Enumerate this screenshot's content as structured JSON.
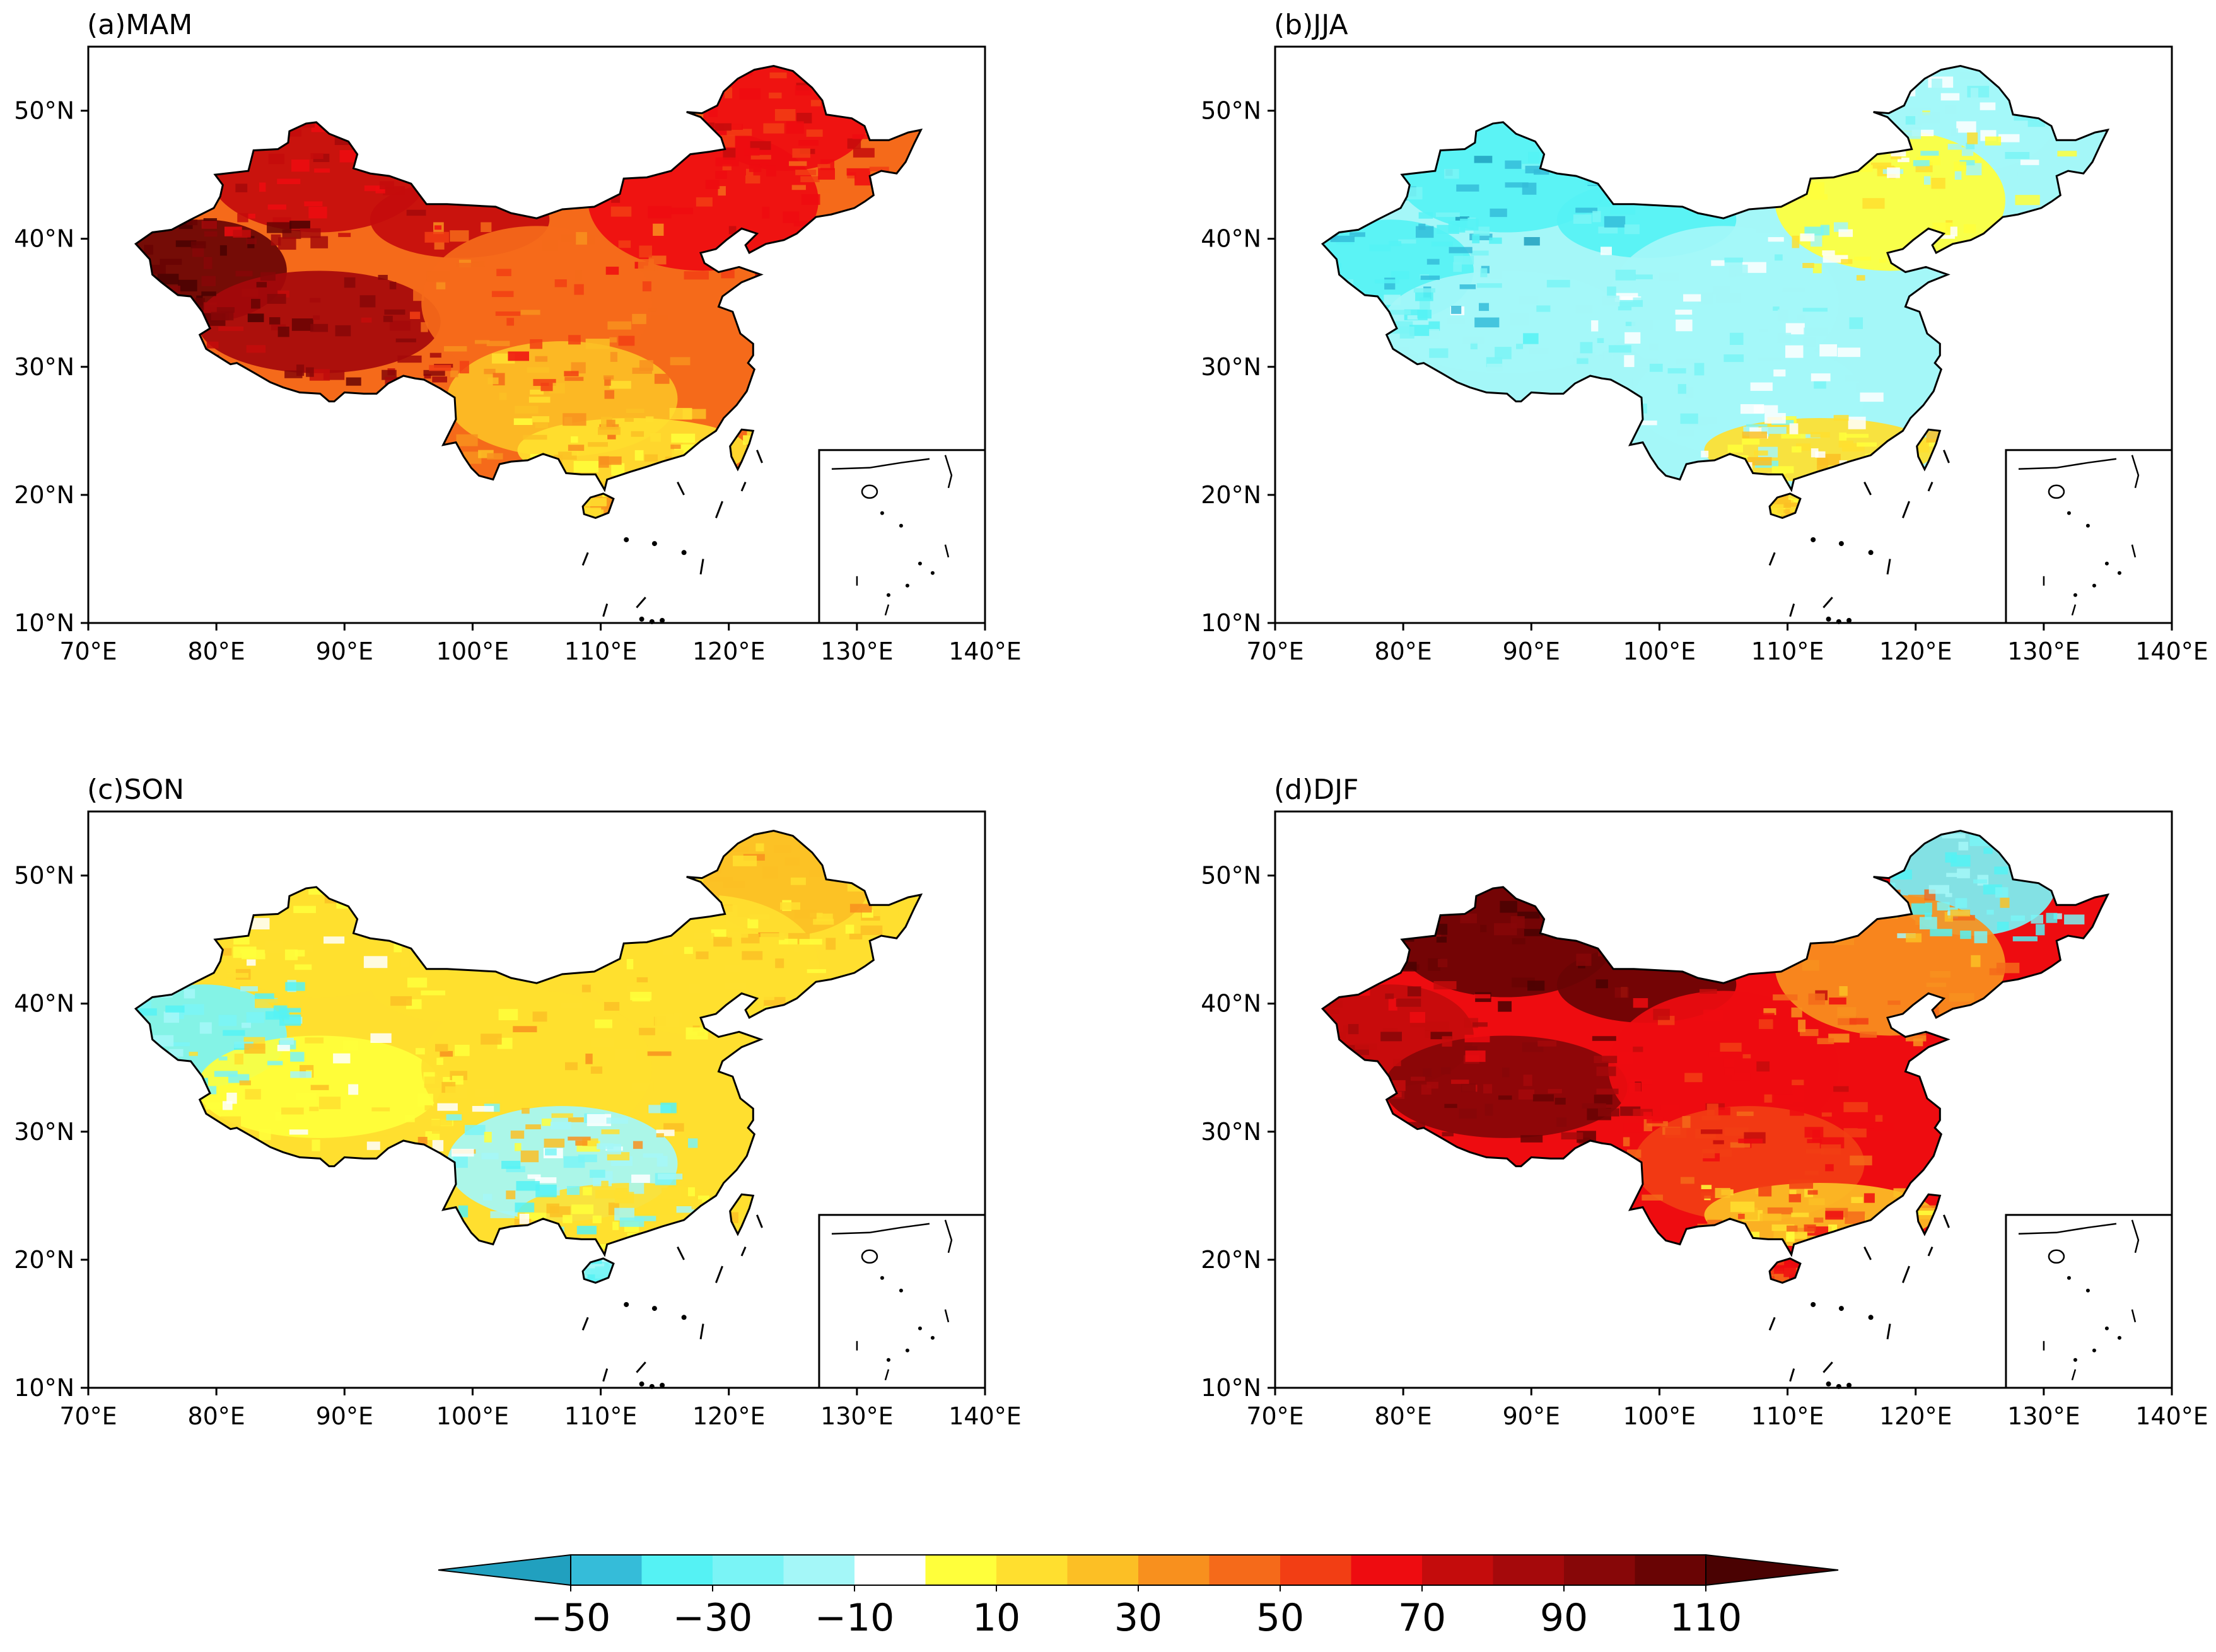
{
  "panels": [
    {
      "id": "a",
      "title": "(a)MAM",
      "season": "MAM",
      "regions": {
        "west": 105,
        "tibet": 88,
        "north_west": 75,
        "central": 48,
        "north_east": 60,
        "south": 28,
        "south_coast": 15,
        "far_north": 65,
        "hainan": 20
      }
    },
    {
      "id": "b",
      "title": "(b)JJA",
      "season": "JJA",
      "regions": {
        "west": -35,
        "tibet": -20,
        "north_west": -40,
        "central": -15,
        "north_east": 5,
        "south": -15,
        "south_coast": 12,
        "far_north": -12,
        "hainan": 15
      }
    },
    {
      "id": "c",
      "title": "(c)SON",
      "season": "SON",
      "regions": {
        "west": -25,
        "tibet": 8,
        "north_west": 12,
        "central": 18,
        "north_east": 15,
        "south": -20,
        "south_coast": 12,
        "far_north": 20,
        "hainan": -20
      }
    },
    {
      "id": "d",
      "title": "(d)DJF",
      "season": "DJF",
      "regions": {
        "west": 75,
        "tibet": 95,
        "north_west": 105,
        "central": 65,
        "north_east": 35,
        "south": 55,
        "south_coast": 20,
        "far_north": -25,
        "hainan": 60
      }
    }
  ],
  "axes": {
    "lon_ticks": [
      "70°E",
      "80°E",
      "90°E",
      "100°E",
      "110°E",
      "120°E",
      "130°E",
      "140°E"
    ],
    "lat_ticks": [
      "10°N",
      "20°N",
      "30°N",
      "40°N",
      "50°N"
    ],
    "lon_range": [
      70,
      140
    ],
    "lat_range": [
      10,
      55
    ]
  },
  "colorbar": {
    "levels": [
      -50,
      -40,
      -30,
      -20,
      -10,
      0,
      10,
      20,
      30,
      40,
      50,
      60,
      70,
      80,
      90,
      100,
      110
    ],
    "colors": [
      "#35bcd9",
      "#55f2f4",
      "#7af4f6",
      "#a4f7f8",
      "#ffffff",
      "#ffff3b",
      "#ffdf2f",
      "#fcbf25",
      "#f8901e",
      "#f56a1a",
      "#f23e14",
      "#ee0c10",
      "#c40c0c",
      "#a5090b",
      "#870708",
      "#690404"
    ],
    "under_color": "#21a0bf",
    "over_color": "#4a0202",
    "tick_labels": [
      "−50",
      "−30",
      "−10",
      "10",
      "30",
      "50",
      "70",
      "90",
      "110"
    ]
  }
}
